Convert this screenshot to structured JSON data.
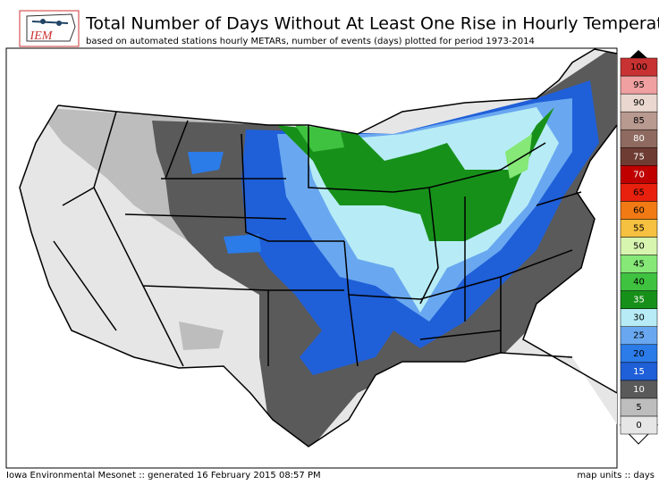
{
  "header": {
    "logo": "IEM",
    "title": "Total Number of Days Without At Least One Rise in Hourly Temperature",
    "subtitle": "based on automated stations hourly METARs, number of events (days) plotted for period 1973-2014"
  },
  "legend": {
    "levels": [
      0,
      5,
      10,
      15,
      20,
      25,
      30,
      35,
      40,
      45,
      50,
      55,
      60,
      65,
      70,
      75,
      80,
      85,
      90,
      95,
      100
    ],
    "colors": [
      "#e6e6e6",
      "#bdbdbd",
      "#5a5a5a",
      "#1f5fd8",
      "#2b7be8",
      "#69a8f0",
      "#b7ecf6",
      "#17901a",
      "#3fc23f",
      "#85e877",
      "#d8f5b0",
      "#f6c040",
      "#f27a14",
      "#e8200e",
      "#c00000",
      "#6e3c32",
      "#8e6a60",
      "#b89a90",
      "#ead8d0",
      "#f0a0a0",
      "#c83232"
    ]
  },
  "footer": {
    "left": "Iowa Environmental Mesonet :: generated 16 February 2015 08:57 PM",
    "right": "map units :: days"
  }
}
